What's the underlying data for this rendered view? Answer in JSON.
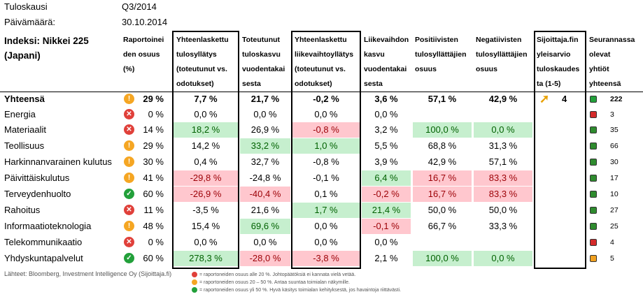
{
  "meta": {
    "quarter_label": "Tuloskausi",
    "quarter_value": "Q3/2014",
    "date_label": "Päivämäärä:",
    "date_value": "30.10.2014"
  },
  "index_title_line1": "Indeksi: Nikkei 225",
  "index_title_line2": "(Japani)",
  "headers": [
    [
      "Raportoinei",
      "den osuus",
      "(%)"
    ],
    [
      "Yhteenlaskettu",
      "tulosyllätys",
      "(toteutunut vs.",
      "odotukset)"
    ],
    [
      "Toteutunut",
      "tuloskasvu",
      "vuodentakai",
      "sesta"
    ],
    [
      "Yhteenlaskettu",
      "liikevaihtoyllätys",
      "(toteutunut vs.",
      "odotukset)"
    ],
    [
      "Liikevaihdon",
      "kasvu",
      "vuodentakai",
      "sesta"
    ],
    [
      "Positiivisten",
      "tulosyllättäjien",
      "osuus"
    ],
    [
      "Negatiivisten",
      "tulosyllättäjien",
      "osuus"
    ],
    [
      "Sijoittaja.fin",
      "yleisarvio",
      "tuloskaudes",
      "ta (1-5)"
    ],
    [
      "Seurannassa",
      "olevat",
      "yhtiöt",
      "yhteensä"
    ]
  ],
  "colors": {
    "good": "#22a03a",
    "mid": "#f5a623",
    "bad": "#e0403a",
    "green_bg": "#c6efce",
    "red_bg": "#ffc7ce"
  },
  "total": {
    "name": "Yhteensä",
    "status": "mid",
    "reported": "29 %",
    "c1": "7,7 %",
    "c2": "21,7 %",
    "c3": "-0,2 %",
    "c4": "3,6 %",
    "c5": "57,1 %",
    "c6": "42,9 %",
    "rating": "4",
    "rating_icon": "arrow-up-right-icon",
    "companies": "222"
  },
  "rows": [
    {
      "name": "Energia",
      "status": "bad",
      "reported": "0 %",
      "c1": "0,0 %",
      "c1h": "",
      "c2": "0,0 %",
      "c2h": "",
      "c3": "0,0 %",
      "c3h": "",
      "c4": "0,0 %",
      "c4h": "",
      "c5": "",
      "c5h": "",
      "c6": "",
      "c6h": "",
      "dot": "#d42a2a",
      "companies": "3"
    },
    {
      "name": "Materiaalit",
      "status": "bad",
      "reported": "14 %",
      "c1": "18,2 %",
      "c1h": "green",
      "c2": "26,9 %",
      "c2h": "",
      "c3": "-0,8 %",
      "c3h": "red",
      "c4": "3,2 %",
      "c4h": "",
      "c5": "100,0 %",
      "c5h": "green",
      "c6": "0,0 %",
      "c6h": "green",
      "dot": "#2e8b2e",
      "companies": "35"
    },
    {
      "name": "Teollisuus",
      "status": "mid",
      "reported": "29 %",
      "c1": "14,2 %",
      "c1h": "",
      "c2": "33,2 %",
      "c2h": "green",
      "c3": "1,0 %",
      "c3h": "green",
      "c4": "5,5 %",
      "c4h": "",
      "c5": "68,8 %",
      "c5h": "",
      "c6": "31,3 %",
      "c6h": "",
      "dot": "#2e8b2e",
      "companies": "66"
    },
    {
      "name": "Harkinnanvarainen kulutus",
      "status": "mid",
      "reported": "30 %",
      "c1": "0,4 %",
      "c1h": "",
      "c2": "32,7 %",
      "c2h": "",
      "c3": "-0,8 %",
      "c3h": "",
      "c4": "3,9 %",
      "c4h": "",
      "c5": "42,9 %",
      "c5h": "",
      "c6": "57,1 %",
      "c6h": "",
      "dot": "#2e8b2e",
      "companies": "30"
    },
    {
      "name": "Päivittäiskulutus",
      "status": "mid",
      "reported": "41 %",
      "c1": "-29,8 %",
      "c1h": "red",
      "c2": "-24,8 %",
      "c2h": "",
      "c3": "-0,1 %",
      "c3h": "",
      "c4": "6,4 %",
      "c4h": "green",
      "c5": "16,7 %",
      "c5h": "red",
      "c6": "83,3 %",
      "c6h": "red",
      "dot": "#2e8b2e",
      "companies": "17"
    },
    {
      "name": "Terveydenhuolto",
      "status": "good",
      "reported": "60 %",
      "c1": "-26,9 %",
      "c1h": "red",
      "c2": "-40,4 %",
      "c2h": "red",
      "c3": "0,1 %",
      "c3h": "",
      "c4": "-0,2 %",
      "c4h": "red",
      "c5": "16,7 %",
      "c5h": "red",
      "c6": "83,3 %",
      "c6h": "red",
      "dot": "#2e8b2e",
      "companies": "10"
    },
    {
      "name": "Rahoitus",
      "status": "bad",
      "reported": "11 %",
      "c1": "-3,5 %",
      "c1h": "",
      "c2": "21,6 %",
      "c2h": "",
      "c3": "1,7 %",
      "c3h": "green",
      "c4": "21,4 %",
      "c4h": "green",
      "c5": "50,0 %",
      "c5h": "",
      "c6": "50,0 %",
      "c6h": "",
      "dot": "#2e8b2e",
      "companies": "27"
    },
    {
      "name": "Informaatioteknologia",
      "status": "mid",
      "reported": "48 %",
      "c1": "15,4 %",
      "c1h": "",
      "c2": "69,6 %",
      "c2h": "green",
      "c3": "0,0 %",
      "c3h": "",
      "c4": "-0,1 %",
      "c4h": "red",
      "c5": "66,7 %",
      "c5h": "",
      "c6": "33,3 %",
      "c6h": "",
      "dot": "#2e8b2e",
      "companies": "25"
    },
    {
      "name": "Telekommunikaatio",
      "status": "bad",
      "reported": "0 %",
      "c1": "0,0 %",
      "c1h": "",
      "c2": "0,0 %",
      "c2h": "",
      "c3": "0,0 %",
      "c3h": "",
      "c4": "0,0 %",
      "c4h": "",
      "c5": "",
      "c5h": "",
      "c6": "",
      "c6h": "",
      "dot": "#d42a2a",
      "companies": "4"
    },
    {
      "name": "Yhdyskuntapalvelut",
      "status": "good",
      "reported": "60 %",
      "c1": "278,3 %",
      "c1h": "green",
      "c2": "-28,0 %",
      "c2h": "red",
      "c3": "-3,8 %",
      "c3h": "red",
      "c4": "2,1 %",
      "c4h": "",
      "c5": "100,0 %",
      "c5h": "green",
      "c6": "0,0 %",
      "c6h": "green",
      "dot": "#f0a020",
      "companies": "5"
    }
  ],
  "footer": {
    "source": "Lähteet: Bloomberg, Investment Intelligence Oy (Sijoittaja.fi)",
    "legend": [
      {
        "status": "bad",
        "text": "= raportoneiden osuus alle 20 %. Johtopäätöksiä ei kannata vielä vetää."
      },
      {
        "status": "mid",
        "text": "= raportoneiden osuus 20 – 50 %. Antaa suuntaa toimialan näkymille."
      },
      {
        "status": "good",
        "text": "= raportoneiden osuus yli 50 %. Hyvä käsitys toimialan kehityksestä, jos havaintoja riittävästi."
      }
    ]
  }
}
